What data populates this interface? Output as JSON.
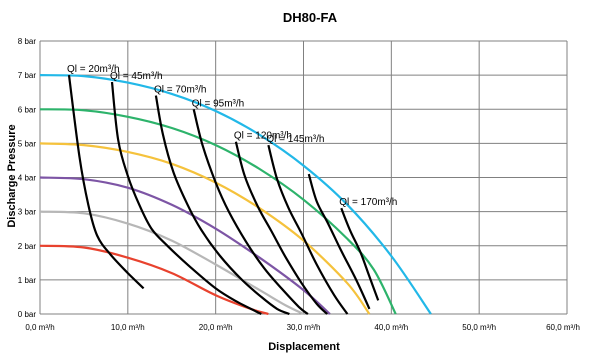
{
  "chart_data": {
    "type": "line",
    "title": "DH80-FA",
    "xlabel": "Displacement",
    "ylabel": "Discharge Pressure",
    "xlim": [
      0,
      60
    ],
    "ylim": [
      0,
      8
    ],
    "x_ticks": [
      "0,0 m³/h",
      "10,0 m³/h",
      "20,0 m³/h",
      "30,0 m³/h",
      "40,0 m³/h",
      "50,0 m³/h",
      "60,0 m³/h"
    ],
    "y_ticks": [
      "0 bar",
      "1 bar",
      "2 bar",
      "3 bar",
      "4 bar",
      "5 bar",
      "6 bar",
      "7 bar",
      "8 bar"
    ],
    "grid": true,
    "legend": "none",
    "series": [
      {
        "color": "#e8422e",
        "x": [
          0.0,
          5.0,
          10.0,
          15.0,
          20.0,
          24.0,
          26.0
        ],
        "y": [
          2.0,
          1.95,
          1.65,
          1.2,
          0.55,
          0.15,
          0.0
        ]
      },
      {
        "color": "#b7b7b7",
        "x": [
          0.0,
          5.0,
          10.0,
          15.0,
          20.0,
          25.0,
          28.0,
          30.0
        ],
        "y": [
          3.0,
          2.95,
          2.65,
          2.15,
          1.45,
          0.7,
          0.25,
          0.0
        ]
      },
      {
        "color": "#7d55a5",
        "x": [
          0.0,
          5.0,
          10.0,
          15.0,
          20.0,
          25.0,
          30.0,
          33.0
        ],
        "y": [
          4.0,
          3.95,
          3.7,
          3.2,
          2.5,
          1.65,
          0.7,
          0.0
        ]
      },
      {
        "color": "#f5c23c",
        "x": [
          0.0,
          5.0,
          10.0,
          15.0,
          20.0,
          25.0,
          30.0,
          35.0,
          37.5
        ],
        "y": [
          5.0,
          4.95,
          4.75,
          4.4,
          3.85,
          3.1,
          2.15,
          0.9,
          0.0
        ]
      },
      {
        "color": "#2db36b",
        "x": [
          0.0,
          5.0,
          10.0,
          15.0,
          20.0,
          25.0,
          30.0,
          35.0,
          38.0,
          40.5
        ],
        "y": [
          6.0,
          5.97,
          5.78,
          5.45,
          4.95,
          4.25,
          3.35,
          2.2,
          1.3,
          0.0
        ]
      },
      {
        "color": "#22b8e8",
        "x": [
          0.0,
          5.0,
          10.0,
          15.0,
          20.0,
          25.0,
          30.0,
          35.0,
          40.0,
          44.5
        ],
        "y": [
          7.0,
          6.97,
          6.78,
          6.45,
          5.95,
          5.25,
          4.35,
          3.2,
          1.7,
          0.0
        ]
      }
    ],
    "iso_flow_lines": [
      {
        "label": "Ql = 20m³/h",
        "color": "#000000",
        "x": [
          3.3,
          4.5,
          5.5,
          6.5,
          8.0,
          10.0,
          11.8
        ],
        "y": [
          7.0,
          4.6,
          3.2,
          2.3,
          1.75,
          1.2,
          0.75
        ]
      },
      {
        "label": "Ql = 45m³/h",
        "color": "#000000",
        "x": [
          8.2,
          8.9,
          10.0,
          11.3,
          12.7,
          14.5,
          17.0,
          20.0,
          22.5,
          25.2
        ],
        "y": [
          6.8,
          5.1,
          4.05,
          3.2,
          2.5,
          2.0,
          1.4,
          0.75,
          0.35,
          0.0
        ]
      },
      {
        "label": "Ql = 70m³/h",
        "color": "#000000",
        "x": [
          13.2,
          14.0,
          15.2,
          16.8,
          18.4,
          20.5,
          23.0,
          25.2,
          27.0,
          28.4
        ],
        "y": [
          6.4,
          5.25,
          4.15,
          3.2,
          2.45,
          1.7,
          1.0,
          0.5,
          0.15,
          0.0
        ]
      },
      {
        "label": "Ql = 95m³/h",
        "color": "#000000",
        "x": [
          17.5,
          18.5,
          20.0,
          21.5,
          23.5,
          25.5,
          27.5,
          29.5,
          30.5
        ],
        "y": [
          6.0,
          4.95,
          3.85,
          3.0,
          2.1,
          1.35,
          0.75,
          0.2,
          0.0
        ]
      },
      {
        "label": "Ql = 120m³/h",
        "color": "#000000",
        "x": [
          22.3,
          23.3,
          24.8,
          26.3,
          28.0,
          29.8,
          31.5,
          32.7
        ],
        "y": [
          5.05,
          4.05,
          3.15,
          2.45,
          1.65,
          0.9,
          0.3,
          0.0
        ]
      },
      {
        "label": "Ql = 145m³/h",
        "color": "#000000",
        "x": [
          26.0,
          27.0,
          28.3,
          29.8,
          31.5,
          33.5,
          35.0
        ],
        "y": [
          4.95,
          3.95,
          3.1,
          2.35,
          1.45,
          0.55,
          0.0
        ]
      },
      {
        "label": "",
        "color": "#000000",
        "x": [
          30.6,
          31.5,
          32.8,
          34.3,
          36.0,
          37.5
        ],
        "y": [
          4.1,
          3.3,
          2.65,
          1.85,
          1.0,
          0.15
        ]
      },
      {
        "label": "Ql = 170m³/h",
        "color": "#000000",
        "x": [
          34.3,
          35.3,
          36.5,
          37.5,
          38.5
        ],
        "y": [
          3.1,
          2.45,
          1.8,
          1.1,
          0.4
        ]
      }
    ]
  }
}
